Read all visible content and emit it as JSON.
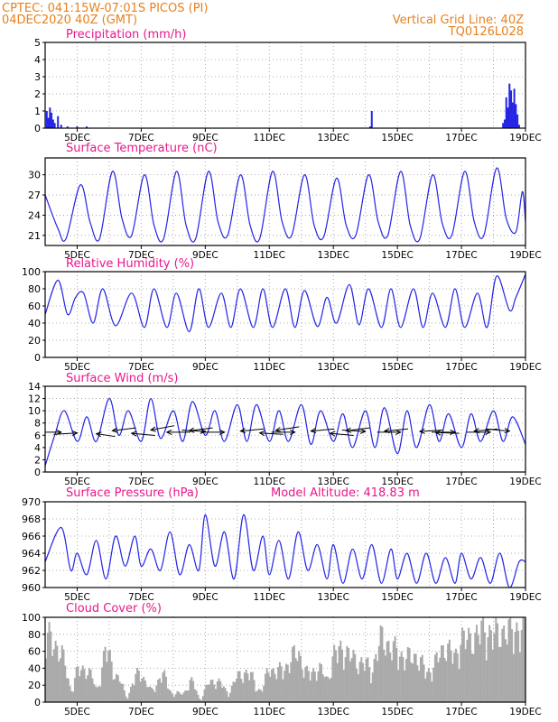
{
  "header": {
    "line1": "CPTEC:   041:15W-07:01S   PICOS (PI)",
    "line2": "04DEC2020 40Z (GMT)",
    "grid_note": "Vertical Grid Line: 40Z",
    "code": "TQ0126L028",
    "model_altitude": "Model Altitude: 418.83 m"
  },
  "colors": {
    "header": "#e8801c",
    "title": "#e8188c",
    "line": "#2424e6",
    "bars": "#aaaaaa",
    "arrows": "#000000"
  },
  "x_ticks": [
    "5DEC",
    "7DEC",
    "9DEC",
    "11DEC",
    "13DEC",
    "15DEC",
    "17DEC",
    "19DEC"
  ],
  "chart_data": [
    {
      "type": "bar",
      "title": "Precipitation (mm/h)",
      "ylim": [
        0,
        5
      ],
      "yticks": [
        "0",
        "1",
        "2",
        "3",
        "4",
        "5"
      ],
      "x_days": [
        4.05,
        4.1,
        4.15,
        4.2,
        4.25,
        4.3,
        4.4,
        4.5,
        4.7,
        5.0,
        5.3,
        14.15,
        14.2,
        18.3,
        18.35,
        18.4,
        18.45,
        18.5,
        18.55,
        18.6,
        18.65,
        18.7,
        18.75,
        18.8
      ],
      "values": [
        1.0,
        0.6,
        1.2,
        0.9,
        0.5,
        0.3,
        0.7,
        0.2,
        0.1,
        0.1,
        0.1,
        0.1,
        1.0,
        0.3,
        0.5,
        1.8,
        1.2,
        2.6,
        2.2,
        1.5,
        2.3,
        1.4,
        0.8,
        0.2
      ]
    },
    {
      "type": "line",
      "title": "Surface Temperature (nC)",
      "ylim": [
        19.5,
        32.5
      ],
      "yticks": [
        "21",
        "24",
        "27",
        "30"
      ],
      "x_days": [
        4.0,
        4.4,
        4.65,
        5.1,
        5.4,
        5.7,
        6.1,
        6.4,
        6.7,
        7.1,
        7.4,
        7.7,
        8.1,
        8.4,
        8.7,
        9.1,
        9.4,
        9.7,
        10.1,
        10.4,
        10.7,
        11.1,
        11.4,
        11.7,
        12.1,
        12.4,
        12.7,
        13.1,
        13.4,
        13.7,
        14.1,
        14.4,
        14.7,
        15.1,
        15.4,
        15.7,
        16.1,
        16.4,
        16.7,
        17.1,
        17.4,
        17.7,
        18.1,
        18.4,
        18.7,
        18.9,
        19.0
      ],
      "values": [
        27.0,
        22.0,
        20.5,
        28.5,
        23.0,
        20.5,
        30.5,
        23.5,
        21.0,
        30.0,
        22.5,
        20.5,
        30.5,
        22.5,
        20.5,
        30.5,
        23.0,
        21.0,
        30.0,
        22.5,
        20.5,
        30.5,
        23.0,
        21.0,
        30.0,
        22.5,
        20.8,
        29.5,
        22.5,
        21.0,
        30.0,
        23.0,
        21.0,
        30.5,
        22.5,
        20.5,
        30.0,
        22.8,
        21.0,
        30.5,
        23.0,
        21.0,
        31.0,
        23.5,
        21.5,
        27.5,
        23.0
      ]
    },
    {
      "type": "line",
      "title": "Relative Humidity (%)",
      "ylim": [
        0,
        100
      ],
      "yticks": [
        "0",
        "20",
        "40",
        "60",
        "80",
        "100"
      ],
      "x_days": [
        4.0,
        4.4,
        4.7,
        4.95,
        5.2,
        5.5,
        5.8,
        6.2,
        6.7,
        7.1,
        7.4,
        7.8,
        8.1,
        8.5,
        8.8,
        9.1,
        9.5,
        9.8,
        10.1,
        10.5,
        10.8,
        11.1,
        11.5,
        11.8,
        12.1,
        12.5,
        12.8,
        13.1,
        13.5,
        13.8,
        14.1,
        14.5,
        14.8,
        15.1,
        15.5,
        15.8,
        16.1,
        16.5,
        16.8,
        17.1,
        17.5,
        17.8,
        18.1,
        18.5,
        18.7,
        19.0
      ],
      "values": [
        50.0,
        90.0,
        50.0,
        70.0,
        75.0,
        40.0,
        80.0,
        37.0,
        75.0,
        35.0,
        80.0,
        35.0,
        75.0,
        30.0,
        80.0,
        35.0,
        75.0,
        35.0,
        80.0,
        35.0,
        80.0,
        35.0,
        80.0,
        35.0,
        78.0,
        36.0,
        70.0,
        40.0,
        85.0,
        38.0,
        80.0,
        35.0,
        80.0,
        35.0,
        80.0,
        35.0,
        75.0,
        35.0,
        80.0,
        35.0,
        75.0,
        35.0,
        95.0,
        55.0,
        70.0,
        97.0
      ]
    },
    {
      "type": "line",
      "title": "Surface Wind (m/s)",
      "ylim": [
        0,
        14
      ],
      "yticks": [
        "0",
        "2",
        "4",
        "6",
        "8",
        "10",
        "12",
        "14"
      ],
      "x_days": [
        4.0,
        4.3,
        4.6,
        5.0,
        5.3,
        5.6,
        6.0,
        6.3,
        6.6,
        7.0,
        7.3,
        7.6,
        8.0,
        8.3,
        8.6,
        9.0,
        9.3,
        9.6,
        10.0,
        10.3,
        10.6,
        11.0,
        11.3,
        11.6,
        12.0,
        12.3,
        12.6,
        13.0,
        13.3,
        13.6,
        14.0,
        14.3,
        14.6,
        15.0,
        15.3,
        15.6,
        16.0,
        16.3,
        16.6,
        17.0,
        17.3,
        17.6,
        18.0,
        18.3,
        18.6,
        19.0
      ],
      "values": [
        1.0,
        6.0,
        10.0,
        5.0,
        9.0,
        5.0,
        12.0,
        6.0,
        10.0,
        5.0,
        12.0,
        5.5,
        10.0,
        5.0,
        11.5,
        6.0,
        10.0,
        5.0,
        11.0,
        5.0,
        11.0,
        5.0,
        10.0,
        5.0,
        11.0,
        4.5,
        10.0,
        5.0,
        9.5,
        4.0,
        10.0,
        4.0,
        10.5,
        3.0,
        10.0,
        4.0,
        11.0,
        5.0,
        9.5,
        4.0,
        9.5,
        5.0,
        10.0,
        5.0,
        9.0,
        4.5
      ],
      "arrows": [
        {
          "x_day": 4.5,
          "from": [
            -1,
            0
          ]
        },
        {
          "x_day": 5.0,
          "from": [
            -1,
            0.2
          ]
        },
        {
          "x_day": 5.6,
          "from": [
            0.8,
            0.4
          ]
        },
        {
          "x_day": 6.1,
          "from": [
            1,
            -0.4
          ]
        },
        {
          "x_day": 6.7,
          "from": [
            1,
            0.3
          ]
        },
        {
          "x_day": 7.3,
          "from": [
            1,
            -0.6
          ]
        },
        {
          "x_day": 7.8,
          "from": [
            1,
            0
          ]
        },
        {
          "x_day": 8.5,
          "from": [
            1,
            -0.4
          ]
        },
        {
          "x_day": 9.0,
          "from": [
            -1,
            -0.2
          ]
        },
        {
          "x_day": 9.6,
          "from": [
            -1,
            0
          ]
        },
        {
          "x_day": 10.1,
          "from": [
            1,
            -0.3
          ]
        },
        {
          "x_day": 10.7,
          "from": [
            1,
            0.2
          ]
        },
        {
          "x_day": 11.2,
          "from": [
            1,
            -0.5
          ]
        },
        {
          "x_day": 11.8,
          "from": [
            -1,
            0
          ]
        },
        {
          "x_day": 12.3,
          "from": [
            1,
            -0.3
          ]
        },
        {
          "x_day": 12.9,
          "from": [
            1,
            0.3
          ]
        },
        {
          "x_day": 13.4,
          "from": [
            1,
            -0.4
          ]
        },
        {
          "x_day": 14.0,
          "from": [
            -1,
            -0.2
          ]
        },
        {
          "x_day": 14.6,
          "from": [
            1,
            -0.3
          ]
        },
        {
          "x_day": 15.1,
          "from": [
            -1,
            0
          ]
        },
        {
          "x_day": 15.7,
          "from": [
            1,
            -0.2
          ]
        },
        {
          "x_day": 16.2,
          "from": [
            1,
            0.1
          ]
        },
        {
          "x_day": 16.8,
          "from": [
            -1,
            0
          ]
        },
        {
          "x_day": 17.4,
          "from": [
            1,
            -0.3
          ]
        },
        {
          "x_day": 17.9,
          "from": [
            -1,
            0
          ]
        },
        {
          "x_day": 18.5,
          "from": [
            -1,
            -0.3
          ]
        }
      ]
    },
    {
      "type": "line",
      "title": "Surface Pressure (hPa)",
      "ylim": [
        960,
        970
      ],
      "yticks": [
        "960",
        "962",
        "964",
        "966",
        "968",
        "970"
      ],
      "x_days": [
        4.0,
        4.5,
        4.8,
        5.0,
        5.3,
        5.6,
        5.9,
        6.2,
        6.5,
        6.8,
        7.0,
        7.3,
        7.6,
        7.9,
        8.2,
        8.5,
        8.8,
        9.0,
        9.3,
        9.6,
        9.9,
        10.2,
        10.5,
        10.8,
        11.0,
        11.3,
        11.6,
        11.9,
        12.2,
        12.5,
        12.8,
        13.0,
        13.3,
        13.6,
        13.9,
        14.2,
        14.5,
        14.8,
        15.0,
        15.3,
        15.6,
        15.9,
        16.2,
        16.5,
        16.8,
        17.0,
        17.3,
        17.6,
        17.9,
        18.2,
        18.5,
        18.8,
        19.0
      ],
      "values": [
        963.0,
        967.0,
        962.0,
        964.0,
        961.5,
        965.5,
        961.0,
        966.0,
        962.5,
        966.0,
        962.5,
        964.5,
        962.0,
        966.5,
        961.5,
        965.0,
        962.0,
        968.5,
        962.5,
        966.5,
        961.0,
        968.5,
        962.0,
        966.0,
        961.5,
        965.5,
        961.0,
        966.5,
        962.0,
        965.0,
        961.0,
        965.0,
        960.5,
        964.5,
        961.0,
        965.0,
        960.5,
        964.5,
        961.0,
        964.0,
        960.5,
        964.0,
        960.5,
        963.5,
        960.5,
        964.0,
        961.0,
        963.5,
        960.5,
        964.0,
        960.0,
        963.0,
        963.0
      ]
    },
    {
      "type": "bar",
      "title": "Cloud Cover (%)",
      "ylim": [
        0,
        100
      ],
      "yticks": [
        "0",
        "20",
        "40",
        "60",
        "80",
        "100"
      ],
      "x_days": [
        4.0,
        4.5,
        4.8,
        5.0,
        5.3,
        5.6,
        5.9,
        6.2,
        6.5,
        6.8,
        7.0,
        7.3,
        7.6,
        7.9,
        8.2,
        8.5,
        8.8,
        9.0,
        9.3,
        9.6,
        9.9,
        10.2,
        10.5,
        10.8,
        11.0,
        11.3,
        11.6,
        11.9,
        12.2,
        12.5,
        12.8,
        13.0,
        13.3,
        13.6,
        13.9,
        14.2,
        14.5,
        14.8,
        15.0,
        15.3,
        15.6,
        15.9,
        16.2,
        16.5,
        16.8,
        17.0,
        17.3,
        17.6,
        17.9,
        18.2,
        18.5,
        18.8,
        19.0
      ],
      "values": [
        95,
        70,
        20,
        40,
        50,
        15,
        75,
        40,
        10,
        30,
        45,
        10,
        40,
        20,
        5,
        30,
        10,
        15,
        35,
        15,
        25,
        45,
        30,
        15,
        50,
        40,
        55,
        70,
        35,
        50,
        30,
        65,
        75,
        60,
        55,
        45,
        90,
        75,
        70,
        60,
        65,
        40,
        55,
        80,
        60,
        90,
        85,
        100,
        95,
        95,
        100,
        100,
        100
      ],
      "bar_count": 300
    }
  ]
}
